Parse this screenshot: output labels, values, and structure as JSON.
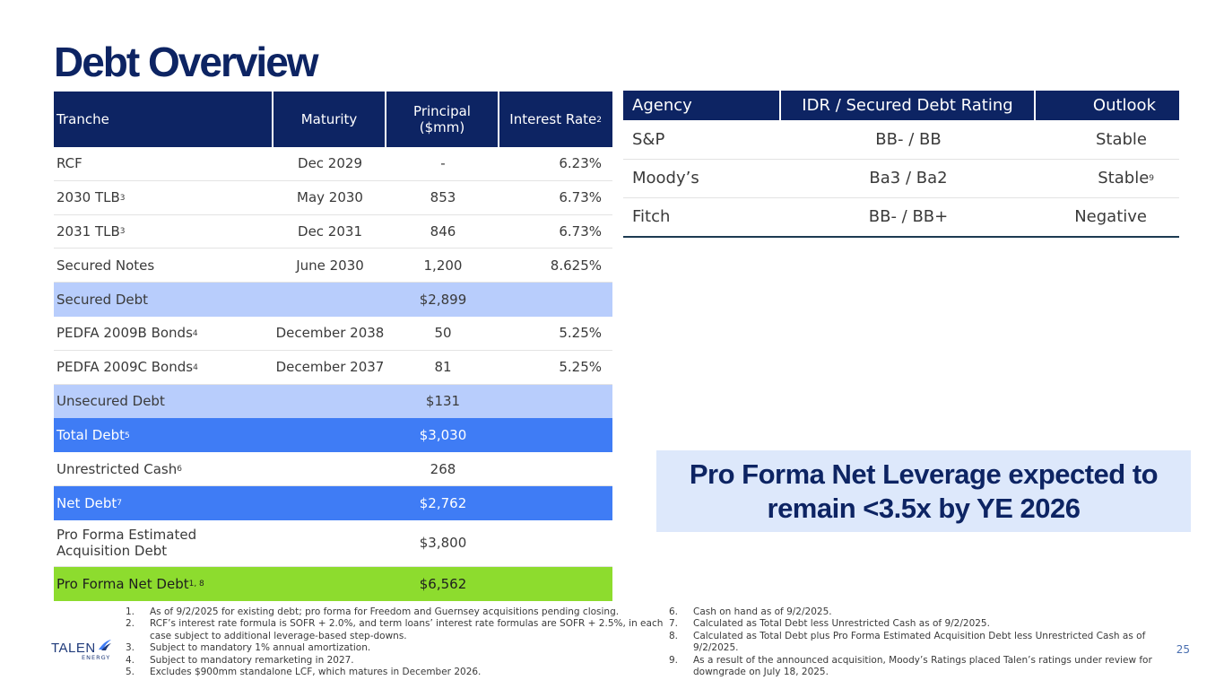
{
  "title": "Debt Overview",
  "debt_table": {
    "headers": {
      "tranche": "Tranche",
      "maturity": "Maturity",
      "principal": "Principal ($mm)",
      "rate": "Interest Rate",
      "rate_sup": "2"
    },
    "rows": [
      {
        "tranche": "RCF",
        "sup": "",
        "maturity": "Dec 2029",
        "principal": "-",
        "rate": "6.23%"
      },
      {
        "tranche": "2030 TLB",
        "sup": "3",
        "maturity": "May 2030",
        "principal": "853",
        "rate": "6.73%"
      },
      {
        "tranche": "2031 TLB",
        "sup": "3",
        "maturity": "Dec 2031",
        "principal": "846",
        "rate": "6.73%"
      },
      {
        "tranche": "Secured Notes",
        "sup": "",
        "maturity": "June 2030",
        "principal": "1,200",
        "rate": "8.625%"
      },
      {
        "tranche": "Secured Debt",
        "sup": "",
        "maturity": "",
        "principal": "$2,899",
        "rate": ""
      },
      {
        "tranche": "PEDFA 2009B Bonds",
        "sup": "4",
        "maturity": "December 2038",
        "principal": "50",
        "rate": "5.25%"
      },
      {
        "tranche": "PEDFA 2009C Bonds",
        "sup": "4",
        "maturity": "December 2037",
        "principal": "81",
        "rate": "5.25%"
      },
      {
        "tranche": "Unsecured Debt",
        "sup": "",
        "maturity": "",
        "principal": "$131",
        "rate": ""
      },
      {
        "tranche": "Total Debt",
        "sup": "5",
        "maturity": "",
        "principal": "$3,030",
        "rate": ""
      },
      {
        "tranche": "Unrestricted Cash",
        "sup": "6",
        "maturity": "",
        "principal": "268",
        "rate": ""
      },
      {
        "tranche": "Net Debt",
        "sup": "7",
        "maturity": "",
        "principal": "$2,762",
        "rate": ""
      },
      {
        "tranche": "Pro Forma Estimated Acquisition Debt",
        "sup": "",
        "maturity": "",
        "principal": "$3,800",
        "rate": ""
      },
      {
        "tranche": "Pro Forma Net Debt",
        "sup": "1, 8",
        "maturity": "",
        "principal": "$6,562",
        "rate": ""
      }
    ]
  },
  "ratings_table": {
    "headers": {
      "agency": "Agency",
      "rating": "IDR / Secured Debt Rating",
      "outlook": "Outlook"
    },
    "rows": [
      {
        "agency": "S&P",
        "rating": "BB- / BB",
        "outlook": "Stable",
        "sup": ""
      },
      {
        "agency": "Moody’s",
        "rating": "Ba3 / Ba2",
        "outlook": "Stable",
        "sup": "9"
      },
      {
        "agency": "Fitch",
        "rating": "BB- / BB+",
        "outlook": "Negative",
        "sup": ""
      }
    ]
  },
  "callout": "Pro Forma Net Leverage expected to remain <3.5x by YE 2026",
  "footnotes_left": [
    {
      "num": "1.",
      "text": "As of 9/2/2025 for existing debt; pro forma for Freedom and Guernsey acquisitions pending closing."
    },
    {
      "num": "2.",
      "text": "RCF’s interest rate formula is SOFR + 2.0%, and term loans’ interest rate formulas are SOFR + 2.5%, in each case subject to additional leverage-based step-downs."
    },
    {
      "num": "3.",
      "text": "Subject to mandatory 1% annual amortization."
    },
    {
      "num": "4.",
      "text": "Subject to mandatory remarketing in 2027."
    },
    {
      "num": "5.",
      "text": "Excludes $900mm standalone LCF, which matures in December 2026."
    }
  ],
  "footnotes_right": [
    {
      "num": "6.",
      "text": "Cash on hand as of 9/2/2025."
    },
    {
      "num": "7.",
      "text": "Calculated as Total Debt less Unrestricted Cash as of 9/2/2025."
    },
    {
      "num": "8.",
      "text": "Calculated as Total Debt plus Pro Forma Estimated Acquisition Debt less Unrestricted Cash as of 9/2/2025."
    },
    {
      "num": "9.",
      "text": "As a result of the announced acquisition, Moody’s Ratings placed Talen’s ratings under review for downgrade on July 18, 2025."
    }
  ],
  "logo": {
    "name": "TALEN",
    "sub": "ENERGY"
  },
  "page_number": "25",
  "colors": {
    "navy": "#0d2463",
    "light_blue": "#b8cdfc",
    "bright_blue": "#3f7cf5",
    "green": "#8ddc2e",
    "callout_bg": "#dde8fb"
  }
}
